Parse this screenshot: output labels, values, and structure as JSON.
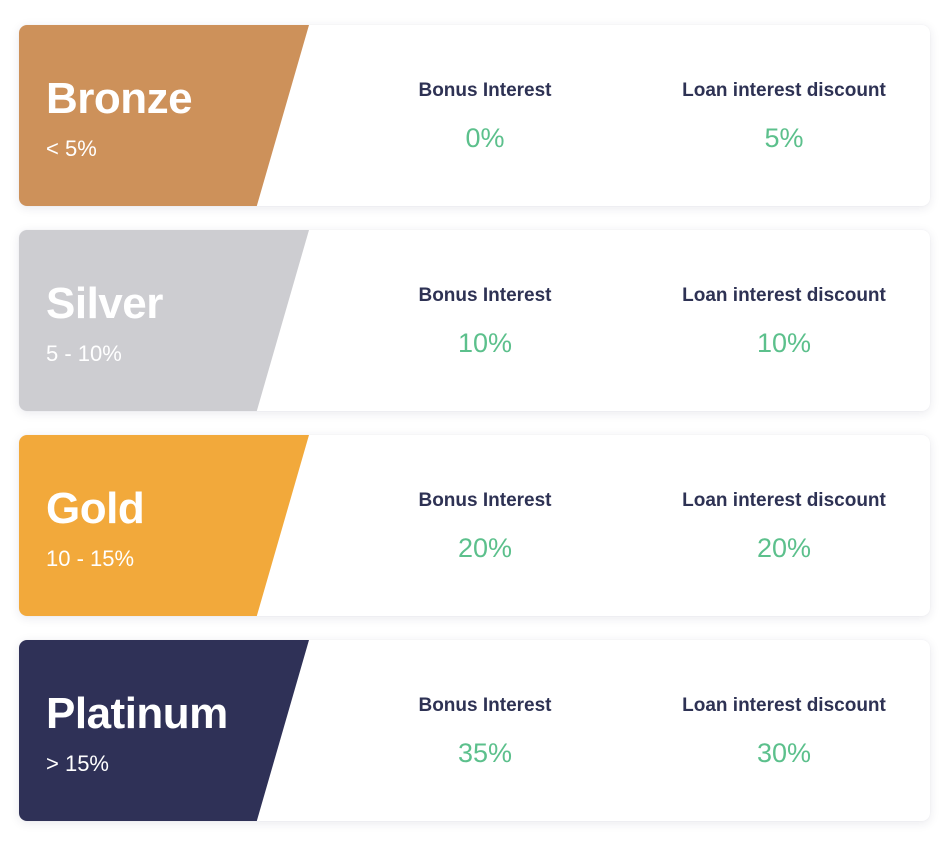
{
  "tiers": [
    {
      "name": "Bronze",
      "range": "< 5%",
      "color": "#cd915a",
      "bonus_label": "Bonus Interest",
      "bonus_value": "0%",
      "loan_label": "Loan interest discount",
      "loan_value": "5%"
    },
    {
      "name": "Silver",
      "range": "5 - 10%",
      "color": "#cdcdd1",
      "bonus_label": "Bonus Interest",
      "bonus_value": "10%",
      "loan_label": "Loan interest discount",
      "loan_value": "10%"
    },
    {
      "name": "Gold",
      "range": "10 - 15%",
      "color": "#f2a93b",
      "bonus_label": "Bonus Interest",
      "bonus_value": "20%",
      "loan_label": "Loan interest discount",
      "loan_value": "20%"
    },
    {
      "name": "Platinum",
      "range": "> 15%",
      "color": "#2f3157",
      "bonus_label": "Bonus Interest",
      "bonus_value": "35%",
      "loan_label": "Loan interest discount",
      "loan_value": "30%"
    }
  ],
  "colors": {
    "label_text": "#2e3254",
    "value_text": "#5cc08c"
  }
}
